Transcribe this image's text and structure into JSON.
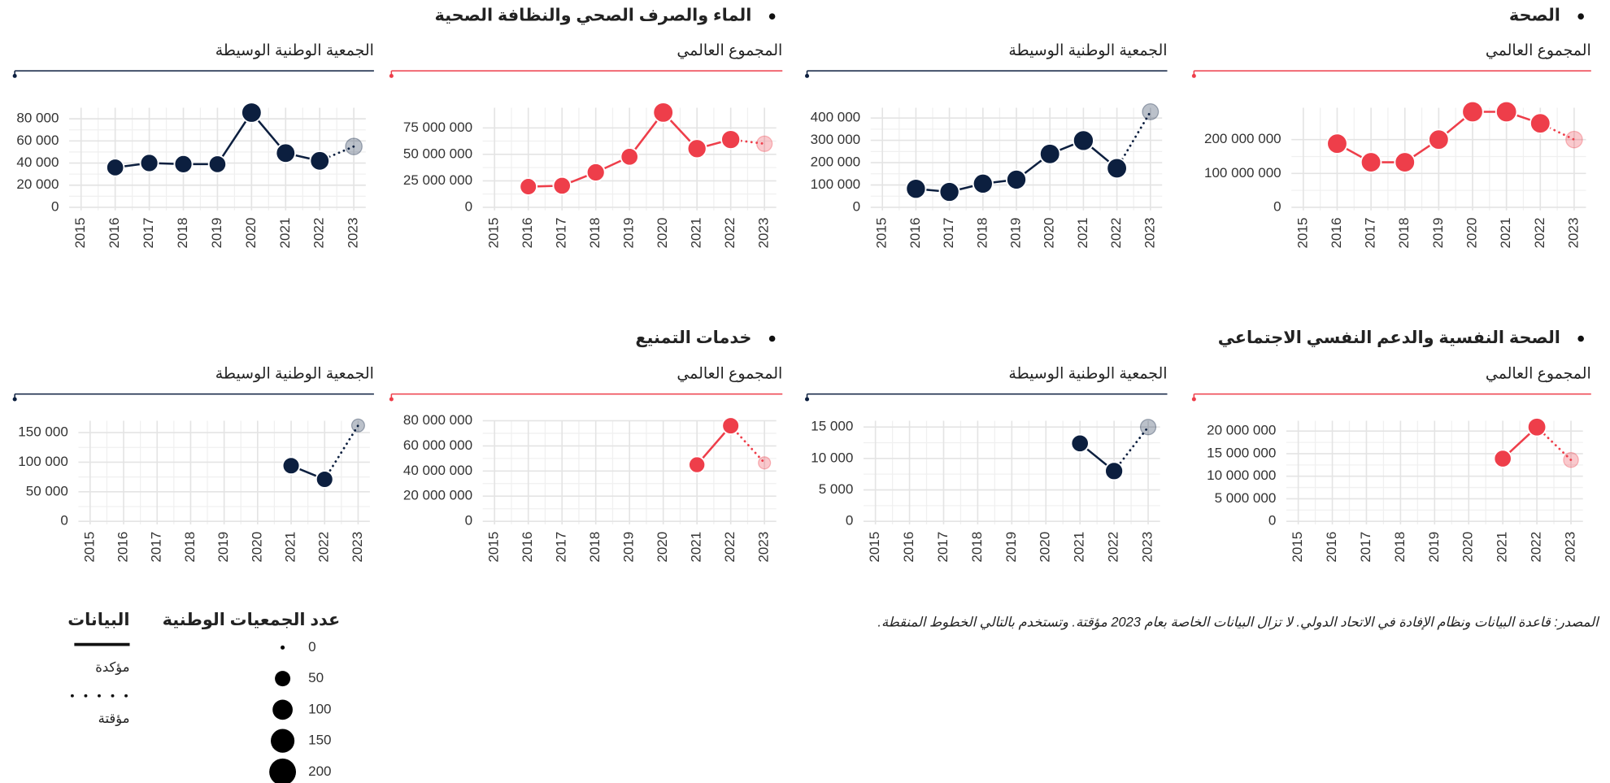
{
  "sections": [
    {
      "title": "الصحة",
      "charts": [
        {
          "type": "line",
          "subtitle": "المجموع العالمي",
          "color": "#ee3e4a",
          "grid": true,
          "x": [
            2015,
            2016,
            2017,
            2018,
            2019,
            2020,
            2021,
            2022,
            2023
          ],
          "xlim": [
            2014.65,
            2023.35
          ],
          "xticks": [
            2015,
            2016,
            2017,
            2018,
            2019,
            2020,
            2021,
            2022,
            2023
          ],
          "values": [
            null,
            188000000,
            133000000,
            133000000,
            200000000,
            282000000,
            282000000,
            248000000,
            200000000
          ],
          "sizes": [
            null,
            100,
            100,
            100,
            100,
            110,
            110,
            100,
            60
          ],
          "ylim": [
            0,
            294000000
          ],
          "yticks": [
            0,
            {
              "value": 100000000,
              "label": "100 000 000"
            },
            {
              "value": 200000000,
              "label": "200 000 000"
            }
          ]
        },
        {
          "type": "line",
          "subtitle": "الجمعية الوطنية الوسيطة",
          "color": "#0c1f3f",
          "grid": true,
          "x": [
            2015,
            2016,
            2017,
            2018,
            2019,
            2020,
            2021,
            2022,
            2023
          ],
          "xlim": [
            2014.65,
            2023.35
          ],
          "xticks": [
            2015,
            2016,
            2017,
            2018,
            2019,
            2020,
            2021,
            2022,
            2023
          ],
          "values": [
            null,
            83000,
            69000,
            106000,
            124000,
            239000,
            299000,
            175000,
            428000
          ],
          "sizes": [
            null,
            95,
            95,
            95,
            95,
            100,
            105,
            100,
            55
          ],
          "ylim": [
            0,
            446000
          ],
          "yticks": [
            0,
            {
              "value": 100000,
              "label": "100 000"
            },
            {
              "value": 200000,
              "label": "200 000"
            },
            {
              "value": 300000,
              "label": "300 000"
            },
            {
              "value": 400000,
              "label": "400 000"
            }
          ]
        }
      ]
    },
    {
      "title": "الماء والصرف الصحي والنظافة الصحية",
      "charts": [
        {
          "type": "line",
          "subtitle": "المجموع العالمي",
          "color": "#ee3e4a",
          "grid": true,
          "x": [
            2015,
            2016,
            2017,
            2018,
            2019,
            2020,
            2021,
            2022,
            2023
          ],
          "xlim": [
            2014.65,
            2023.35
          ],
          "xticks": [
            2015,
            2016,
            2017,
            2018,
            2019,
            2020,
            2021,
            2022,
            2023
          ],
          "values": [
            null,
            19500000,
            20400000,
            33000000,
            47700000,
            89500000,
            55400000,
            64000000,
            60000000
          ],
          "sizes": [
            null,
            65,
            70,
            75,
            70,
            100,
            85,
            85,
            50
          ],
          "ylim": [
            0,
            94000000
          ],
          "yticks": [
            0,
            {
              "value": 25000000,
              "label": "25 000 000"
            },
            {
              "value": 50000000,
              "label": "50 000 000"
            },
            {
              "value": 75000000,
              "label": "75 000 000"
            }
          ]
        },
        {
          "type": "line",
          "subtitle": "الجمعية الوطنية الوسيطة",
          "color": "#0c1f3f",
          "grid": true,
          "x": [
            2015,
            2016,
            2017,
            2018,
            2019,
            2020,
            2021,
            2022,
            2023
          ],
          "xlim": [
            2014.65,
            2023.35
          ],
          "xticks": [
            2015,
            2016,
            2017,
            2018,
            2019,
            2020,
            2021,
            2022,
            2023
          ],
          "values": [
            null,
            36000,
            40000,
            39000,
            39000,
            85600,
            49000,
            42000,
            55000
          ],
          "sizes": [
            null,
            70,
            75,
            75,
            70,
            100,
            90,
            90,
            60
          ],
          "ylim": [
            0,
            90000
          ],
          "yticks": [
            0,
            {
              "value": 20000,
              "label": "20 000"
            },
            {
              "value": 40000,
              "label": "40 000"
            },
            {
              "value": 60000,
              "label": "60 000"
            },
            {
              "value": 80000,
              "label": "80 000"
            }
          ]
        }
      ]
    },
    {
      "title": "الصحة النفسية والدعم النفسي الاجتماعي",
      "charts": [
        {
          "type": "line",
          "subtitle": "المجموع العالمي",
          "color": "#ee3e4a",
          "grid": true,
          "x": [
            2015,
            2016,
            2017,
            2018,
            2019,
            2020,
            2021,
            2022,
            2023
          ],
          "xlim": [
            2014.65,
            2023.35
          ],
          "xticks": [
            2015,
            2016,
            2017,
            2018,
            2019,
            2020,
            2021,
            2022,
            2023
          ],
          "values": [
            null,
            null,
            null,
            null,
            null,
            null,
            13900000,
            20900000,
            13600000
          ],
          "sizes": [
            null,
            null,
            null,
            null,
            null,
            null,
            70,
            80,
            45
          ],
          "ylim": [
            0,
            22300000
          ],
          "yticks": [
            0,
            {
              "value": 5000000,
              "label": "5 000 000"
            },
            {
              "value": 10000000,
              "label": "10 000 000"
            },
            {
              "value": 15000000,
              "label": "15 000 000"
            },
            {
              "value": 20000000,
              "label": "20 000 000"
            }
          ]
        },
        {
          "type": "line",
          "subtitle": "الجمعية الوطنية الوسيطة",
          "color": "#0c1f3f",
          "grid": true,
          "x": [
            2015,
            2016,
            2017,
            2018,
            2019,
            2020,
            2021,
            2022,
            2023
          ],
          "xlim": [
            2014.65,
            2023.35
          ],
          "xticks": [
            2015,
            2016,
            2017,
            2018,
            2019,
            2020,
            2021,
            2022,
            2023
          ],
          "values": [
            null,
            null,
            null,
            null,
            null,
            null,
            12400,
            8000,
            15000
          ],
          "sizes": [
            null,
            null,
            null,
            null,
            null,
            null,
            70,
            75,
            50
          ],
          "ylim": [
            0,
            16000
          ],
          "yticks": [
            0,
            {
              "value": 5000,
              "label": "5 000"
            },
            {
              "value": 10000,
              "label": "10 000"
            },
            {
              "value": 15000,
              "label": "15 000"
            }
          ]
        }
      ]
    },
    {
      "title": "خدمات التمنيع",
      "charts": [
        {
          "type": "line",
          "subtitle": "المجموع العالمي",
          "color": "#ee3e4a",
          "grid": true,
          "x": [
            2015,
            2016,
            2017,
            2018,
            2019,
            2020,
            2021,
            2022,
            2023
          ],
          "xlim": [
            2014.65,
            2023.35
          ],
          "xticks": [
            2015,
            2016,
            2017,
            2018,
            2019,
            2020,
            2021,
            2022,
            2023
          ],
          "values": [
            null,
            null,
            null,
            null,
            null,
            null,
            45000000,
            76000000,
            46500000
          ],
          "sizes": [
            null,
            null,
            null,
            null,
            null,
            null,
            60,
            65,
            25
          ],
          "ylim": [
            0,
            80000000
          ],
          "yticks": [
            0,
            {
              "value": 20000000,
              "label": "20 000 000"
            },
            {
              "value": 40000000,
              "label": "40 000 000"
            },
            {
              "value": 60000000,
              "label": "60 000 000"
            },
            {
              "value": 80000000,
              "label": "80 000 000"
            }
          ]
        },
        {
          "type": "line",
          "subtitle": "الجمعية الوطنية الوسيطة",
          "color": "#0c1f3f",
          "grid": true,
          "x": [
            2015,
            2016,
            2017,
            2018,
            2019,
            2020,
            2021,
            2022,
            2023
          ],
          "xlim": [
            2014.65,
            2023.35
          ],
          "xticks": [
            2015,
            2016,
            2017,
            2018,
            2019,
            2020,
            2021,
            2022,
            2023
          ],
          "values": [
            null,
            null,
            null,
            null,
            null,
            null,
            94000,
            71000,
            162000
          ],
          "sizes": [
            null,
            null,
            null,
            null,
            null,
            null,
            65,
            65,
            30
          ],
          "ylim": [
            0,
            170000
          ],
          "yticks": [
            0,
            {
              "value": 50000,
              "label": "50 000"
            },
            {
              "value": 100000,
              "label": "100 000"
            },
            {
              "value": 150000,
              "label": "150 000"
            }
          ]
        }
      ]
    }
  ],
  "provisional_year": 2023,
  "legend": {
    "data_title": "البيانات",
    "data_items": [
      "مؤكدة",
      "مؤقتة"
    ],
    "size_title": "عدد الجمعيات الوطنية",
    "sizes": [
      0,
      50,
      100,
      150,
      200
    ]
  },
  "source": "المصدر: قاعدة البيانات ونظام الإفادة في الاتحاد الدولي. لا تزال البيانات الخاصة بعام 2023 مؤقتة. وتستخدم بالتالي الخطوط المنقطة."
}
